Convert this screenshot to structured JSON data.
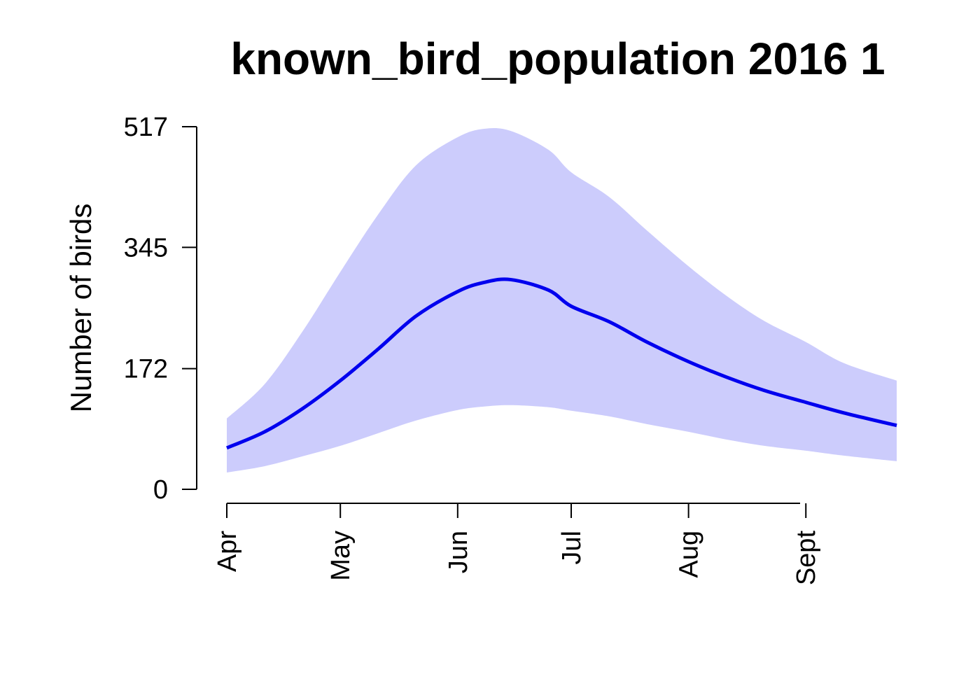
{
  "chart_data": {
    "type": "line",
    "title": "known_bird_population 2016 1",
    "xlabel": "",
    "ylabel": "Number of birds",
    "y_ticks": [
      0,
      172,
      345,
      517
    ],
    "y_tick_labels": [
      "0",
      "172",
      "345",
      "517"
    ],
    "ylim": [
      0,
      517
    ],
    "x_ticks": [
      {
        "date": "2016-04-01",
        "label": "Apr"
      },
      {
        "date": "2016-05-01",
        "label": "May"
      },
      {
        "date": "2016-06-01",
        "label": "Jun"
      },
      {
        "date": "2016-07-01",
        "label": "Jul"
      },
      {
        "date": "2016-08-01",
        "label": "Aug"
      },
      {
        "date": "2016-09-01",
        "label": "Sept"
      }
    ],
    "xlim": [
      "2016-04-01",
      "2016-09-25"
    ],
    "colors": {
      "line": "#0000ee",
      "band": "#ccccfc"
    },
    "series": [
      {
        "type": "line",
        "x": [
          "2016-04-01",
          "2016-04-11",
          "2016-04-21",
          "2016-05-01",
          "2016-05-11",
          "2016-05-21",
          "2016-06-01",
          "2016-06-08",
          "2016-06-15",
          "2016-06-25",
          "2016-07-01",
          "2016-07-11",
          "2016-07-21",
          "2016-08-01",
          "2016-08-11",
          "2016-08-21",
          "2016-09-01",
          "2016-09-11",
          "2016-09-25"
        ],
        "values": [
          59,
          82,
          115,
          155,
          200,
          247,
          282,
          295,
          299,
          284,
          261,
          239,
          210,
          182,
          160,
          141,
          124,
          109,
          91
        ]
      },
      {
        "type": "band",
        "x": [
          "2016-04-01",
          "2016-04-11",
          "2016-04-21",
          "2016-05-01",
          "2016-05-11",
          "2016-05-21",
          "2016-06-01",
          "2016-06-08",
          "2016-06-15",
          "2016-06-25",
          "2016-07-01",
          "2016-07-11",
          "2016-07-21",
          "2016-08-01",
          "2016-08-11",
          "2016-08-21",
          "2016-09-01",
          "2016-09-11",
          "2016-09-25"
        ],
        "lower": [
          24,
          33,
          47,
          62,
          80,
          98,
          113,
          118,
          120,
          117,
          112,
          104,
          93,
          82,
          71,
          62,
          55,
          48,
          40
        ],
        "upper": [
          101,
          150,
          225,
          310,
          392,
          462,
          502,
          514,
          511,
          484,
          452,
          417,
          369,
          318,
          276,
          240,
          210,
          180,
          155
        ]
      }
    ]
  }
}
